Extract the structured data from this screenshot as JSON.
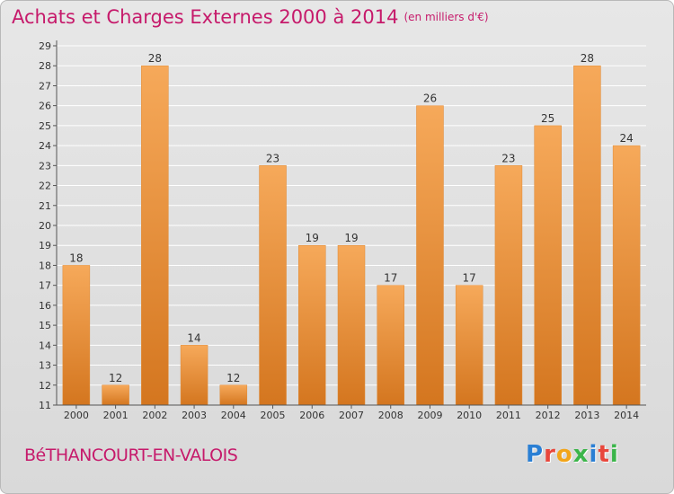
{
  "header": {
    "title": "Achats et Charges Externes 2000 à 2014",
    "unit": "(en milliers d'€)"
  },
  "footer": {
    "town": "BéTHANCOURT-EN-VALOIS",
    "brand": "Proxiti"
  },
  "colors": {
    "title": "#c61a6b",
    "bar_top": "#f6a95a",
    "bar_bottom": "#d4761f",
    "axis": "#555555",
    "grid": "#ffffff"
  },
  "chart_data": {
    "type": "bar",
    "title": "Achats et Charges Externes 2000 à 2014",
    "subtitle": "(en milliers d'€)",
    "categories": [
      "2000",
      "2001",
      "2002",
      "2003",
      "2004",
      "2005",
      "2006",
      "2007",
      "2008",
      "2009",
      "2010",
      "2011",
      "2012",
      "2013",
      "2014"
    ],
    "values": [
      18,
      12,
      28,
      14,
      12,
      23,
      19,
      19,
      17,
      26,
      17,
      23,
      25,
      28,
      24
    ],
    "ylim": [
      11,
      29
    ],
    "yticks": [
      11,
      12,
      13,
      14,
      15,
      16,
      17,
      18,
      19,
      20,
      21,
      22,
      23,
      24,
      25,
      26,
      27,
      28,
      29
    ],
    "grid": true,
    "legend": "none"
  }
}
